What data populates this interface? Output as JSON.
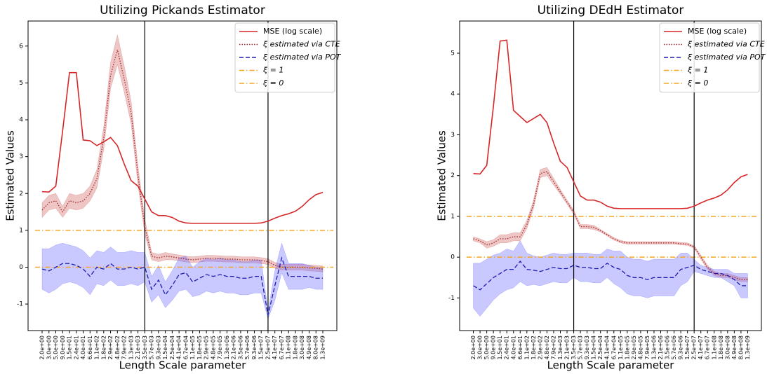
{
  "chart_data": [
    {
      "type": "line",
      "title": "Utilizing Pickands Estimator",
      "x_label": "Length Scale parameter",
      "y_label": "Estimated Values",
      "categories": [
        "2.0e+00",
        "3.0e+00",
        "5.0e+00",
        "9.0e+00",
        "1.5e+01",
        "2.4e+01",
        "4.0e+01",
        "6.6e+01",
        "1.1e+02",
        "1.8e+02",
        "2.9e+02",
        "4.8e+02",
        "7.9e+02",
        "1.3e+03",
        "2.1e+03",
        "3.5e+03",
        "5.7e+03",
        "9.3e+03",
        "1.5e+04",
        "2.5e+04",
        "4.1e+04",
        "6.7e+04",
        "1.1e+05",
        "1.8e+05",
        "2.9e+05",
        "4.8e+05",
        "7.9e+05",
        "1.3e+06",
        "2.1e+06",
        "3.5e+06",
        "5.7e+06",
        "9.3e+06",
        "1.5e+07",
        "2.5e+07",
        "4.1e+07",
        "6.7e+07",
        "1.1e+08",
        "1.8e+08",
        "3.0e+08",
        "4.9e+08",
        "8.0e+08",
        "1.3e+09"
      ],
      "ylim": [
        -1.72,
        6.68
      ],
      "yticks": [
        -1,
        0,
        1,
        2,
        3,
        4,
        5,
        6
      ],
      "vlines": [
        "3.5e+03",
        "2.5e+07"
      ],
      "series": [
        {
          "name": "MSE (log scale)",
          "color": "#d62728",
          "dash": "solid",
          "values": [
            2.05,
            2.04,
            2.2,
            3.7,
            5.28,
            5.28,
            3.45,
            3.43,
            3.3,
            3.4,
            3.52,
            3.3,
            2.8,
            2.35,
            2.2,
            1.85,
            1.5,
            1.4,
            1.4,
            1.35,
            1.25,
            1.2,
            1.19,
            1.19,
            1.19,
            1.19,
            1.19,
            1.19,
            1.19,
            1.19,
            1.19,
            1.19,
            1.2,
            1.25,
            1.33,
            1.4,
            1.45,
            1.52,
            1.65,
            1.83,
            1.97,
            2.03
          ]
        },
        {
          "name": "ξ estimated via CTE",
          "color": "#a52a2a",
          "dash": "dotted",
          "band_color": "#cd5c5c",
          "values": [
            1.55,
            1.75,
            1.8,
            1.5,
            1.8,
            1.75,
            1.8,
            2.0,
            2.4,
            3.5,
            5.2,
            5.9,
            5.1,
            4.2,
            2.5,
            1.1,
            0.3,
            0.25,
            0.3,
            0.28,
            0.25,
            0.22,
            0.2,
            0.22,
            0.24,
            0.24,
            0.23,
            0.22,
            0.22,
            0.2,
            0.2,
            0.2,
            0.18,
            0.15,
            0.05,
            0.0,
            0.0,
            0.0,
            0.0,
            -0.02,
            -0.03,
            -0.05
          ],
          "band": [
            0.2,
            0.2,
            0.2,
            0.15,
            0.2,
            0.2,
            0.2,
            0.2,
            0.25,
            0.3,
            0.35,
            0.4,
            0.35,
            0.3,
            0.25,
            0.2,
            0.1,
            0.1,
            0.1,
            0.08,
            0.08,
            0.08,
            0.08,
            0.08,
            0.08,
            0.08,
            0.08,
            0.08,
            0.08,
            0.08,
            0.08,
            0.08,
            0.08,
            0.08,
            0.08,
            0.08,
            0.08,
            0.08,
            0.08,
            0.08,
            0.08,
            0.08
          ]
        },
        {
          "name": "ξ estimated via POT",
          "color": "#1c1cb0",
          "dash": "dashed",
          "band_color": "#6464ff",
          "values": [
            -0.05,
            -0.1,
            0.0,
            0.1,
            0.1,
            0.05,
            -0.05,
            -0.25,
            0.0,
            -0.05,
            0.1,
            -0.05,
            -0.05,
            0.0,
            -0.05,
            0.0,
            -0.6,
            -0.35,
            -0.75,
            -0.5,
            -0.2,
            -0.15,
            -0.4,
            -0.3,
            -0.2,
            -0.25,
            -0.2,
            -0.25,
            -0.25,
            -0.3,
            -0.3,
            -0.25,
            -0.25,
            -1.3,
            -0.5,
            0.25,
            -0.25,
            -0.25,
            -0.25,
            -0.25,
            -0.3,
            -0.3
          ],
          "band": [
            0.55,
            0.6,
            0.6,
            0.55,
            0.5,
            0.5,
            0.5,
            0.5,
            0.45,
            0.45,
            0.45,
            0.45,
            0.45,
            0.45,
            0.45,
            0.4,
            0.35,
            0.4,
            0.35,
            0.4,
            0.45,
            0.45,
            0.4,
            0.45,
            0.45,
            0.45,
            0.45,
            0.45,
            0.45,
            0.45,
            0.45,
            0.45,
            0.45,
            0.1,
            0.4,
            0.4,
            0.35,
            0.35,
            0.35,
            0.3,
            0.3,
            0.3
          ]
        }
      ],
      "hlines": [
        {
          "name": "ξ = 1",
          "value": 1,
          "color": "#f5a623"
        },
        {
          "name": "ξ = 0",
          "value": 0,
          "color": "#f5a623"
        }
      ]
    },
    {
      "type": "line",
      "title": "Utilizing DEdH Estimator",
      "x_label": "Length Scale parameter",
      "y_label": "Estimated Values",
      "categories": [
        "2.0e+00",
        "3.0e+00",
        "5.0e+00",
        "9.0e+00",
        "1.5e+01",
        "2.4e+01",
        "4.0e+01",
        "6.6e+01",
        "1.1e+02",
        "1.8e+02",
        "2.9e+02",
        "4.8e+02",
        "7.9e+02",
        "1.3e+03",
        "2.1e+03",
        "3.5e+03",
        "5.7e+03",
        "9.3e+03",
        "1.5e+04",
        "2.5e+04",
        "4.1e+04",
        "6.7e+04",
        "1.1e+05",
        "1.8e+05",
        "2.9e+05",
        "4.8e+05",
        "7.9e+05",
        "1.3e+06",
        "2.1e+06",
        "3.5e+06",
        "5.7e+06",
        "9.3e+06",
        "1.5e+07",
        "2.5e+07",
        "4.1e+07",
        "6.7e+07",
        "1.1e+08",
        "1.8e+08",
        "3.0e+08",
        "4.9e+08",
        "8.0e+08",
        "1.3e+09"
      ],
      "ylim": [
        -1.8,
        5.79
      ],
      "yticks": [
        -1,
        0,
        1,
        2,
        3,
        4,
        5
      ],
      "vlines": [
        "3.5e+03",
        "2.5e+07"
      ],
      "series": [
        {
          "name": "MSE (log scale)",
          "color": "#d62728",
          "dash": "solid",
          "values": [
            2.05,
            2.04,
            2.25,
            3.7,
            5.3,
            5.32,
            3.6,
            3.45,
            3.3,
            3.4,
            3.5,
            3.3,
            2.8,
            2.35,
            2.2,
            1.85,
            1.5,
            1.4,
            1.4,
            1.35,
            1.25,
            1.2,
            1.19,
            1.19,
            1.19,
            1.19,
            1.19,
            1.19,
            1.19,
            1.19,
            1.19,
            1.19,
            1.2,
            1.25,
            1.33,
            1.4,
            1.45,
            1.52,
            1.65,
            1.83,
            1.97,
            2.03
          ]
        },
        {
          "name": "ξ estimated via CTE",
          "color": "#a52a2a",
          "dash": "dotted",
          "band_color": "#cd5c5c",
          "values": [
            0.45,
            0.4,
            0.3,
            0.35,
            0.45,
            0.45,
            0.5,
            0.5,
            0.8,
            1.3,
            2.05,
            2.1,
            1.85,
            1.6,
            1.35,
            1.1,
            0.75,
            0.75,
            0.73,
            0.65,
            0.55,
            0.45,
            0.38,
            0.35,
            0.35,
            0.35,
            0.35,
            0.35,
            0.35,
            0.35,
            0.35,
            0.33,
            0.32,
            0.25,
            0.0,
            -0.25,
            -0.4,
            -0.45,
            -0.45,
            -0.5,
            -0.55,
            -0.55
          ],
          "band": [
            0.05,
            0.05,
            0.08,
            0.08,
            0.1,
            0.1,
            0.1,
            0.1,
            0.1,
            0.1,
            0.1,
            0.1,
            0.08,
            0.06,
            0.05,
            0.05,
            0.05,
            0.05,
            0.05,
            0.03,
            0.03,
            0.03,
            0.03,
            0.03,
            0.03,
            0.03,
            0.03,
            0.03,
            0.03,
            0.03,
            0.03,
            0.03,
            0.03,
            0.03,
            0.05,
            0.05,
            0.05,
            0.05,
            0.05,
            0.05,
            0.05,
            0.05
          ]
        },
        {
          "name": "ξ estimated via POT",
          "color": "#1c1cb0",
          "dash": "dashed",
          "band_color": "#6464ff",
          "values": [
            -0.7,
            -0.8,
            -0.65,
            -0.5,
            -0.4,
            -0.3,
            -0.3,
            -0.1,
            -0.3,
            -0.32,
            -0.35,
            -0.3,
            -0.25,
            -0.28,
            -0.28,
            -0.2,
            -0.25,
            -0.25,
            -0.28,
            -0.28,
            -0.15,
            -0.25,
            -0.3,
            -0.45,
            -0.5,
            -0.5,
            -0.55,
            -0.5,
            -0.5,
            -0.5,
            -0.5,
            -0.3,
            -0.25,
            -0.2,
            -0.3,
            -0.35,
            -0.4,
            -0.4,
            -0.45,
            -0.55,
            -0.7,
            -0.7
          ],
          "band": [
            0.55,
            0.65,
            0.6,
            0.55,
            0.5,
            0.5,
            0.45,
            0.5,
            0.4,
            0.35,
            0.35,
            0.35,
            0.35,
            0.35,
            0.35,
            0.3,
            0.35,
            0.35,
            0.35,
            0.35,
            0.35,
            0.4,
            0.45,
            0.45,
            0.45,
            0.45,
            0.45,
            0.45,
            0.45,
            0.45,
            0.45,
            0.4,
            0.35,
            0.15,
            0.1,
            0.1,
            0.1,
            0.1,
            0.15,
            0.15,
            0.3,
            0.3
          ]
        }
      ],
      "hlines": [
        {
          "name": "ξ = 1",
          "value": 1,
          "color": "#f5a623"
        },
        {
          "name": "ξ = 0",
          "value": 0,
          "color": "#f5a623"
        }
      ]
    }
  ]
}
